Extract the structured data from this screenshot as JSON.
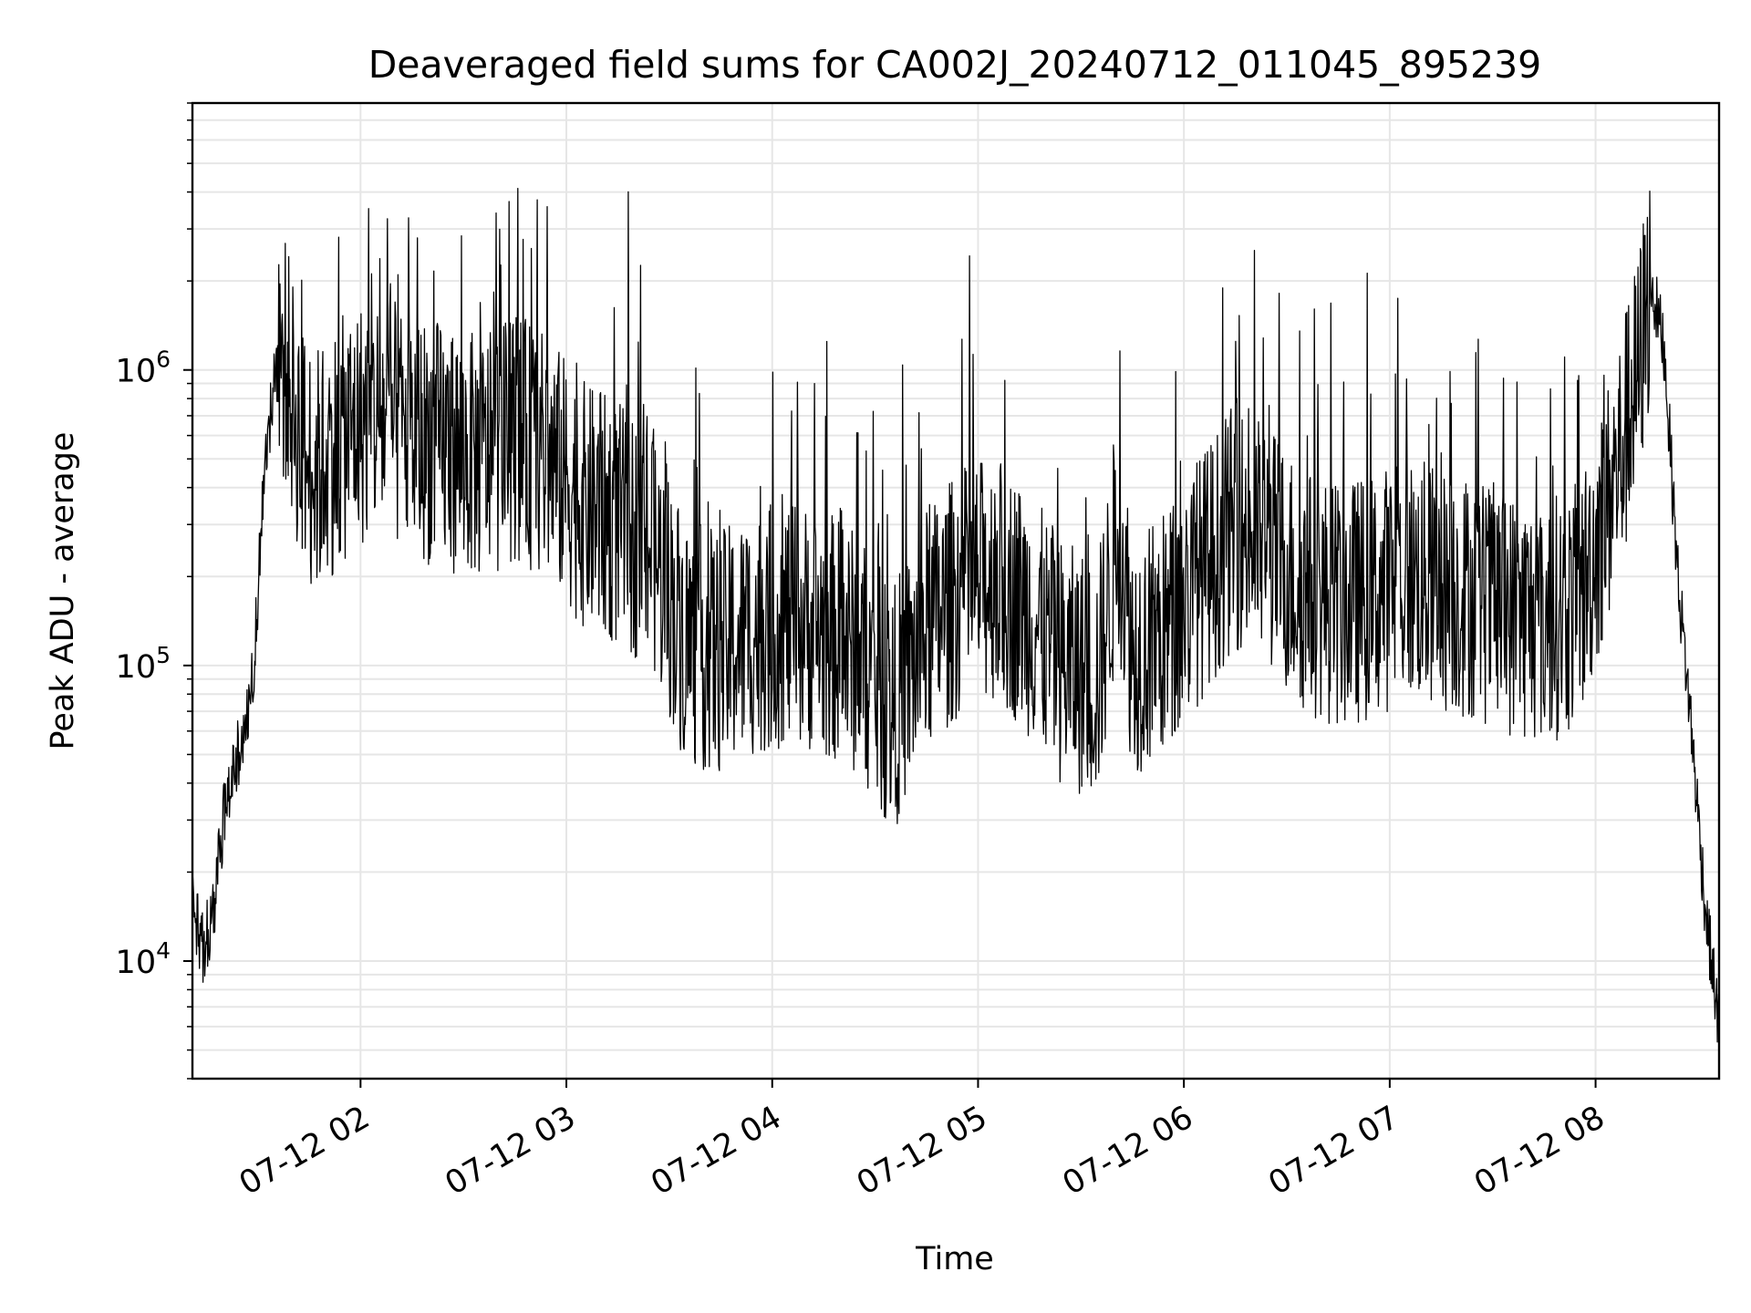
{
  "chart_data": {
    "type": "line",
    "title": "Deaveraged field sums for CA002J_20240712_011045_895239",
    "xlabel": "Time",
    "ylabel": "Peak ADU - average",
    "y_scale": "log",
    "ylim": [
      4000,
      8000000
    ],
    "xlim": [
      "07-12 01:11",
      "07-12 08:36"
    ],
    "grid": true,
    "line_color": "#000000",
    "x_ticks": [
      "07-12 02",
      "07-12 03",
      "07-12 04",
      "07-12 05",
      "07-12 06",
      "07-12 07",
      "07-12 08"
    ],
    "y_ticks": [
      {
        "base": "10",
        "exp": "4",
        "value": 10000
      },
      {
        "base": "10",
        "exp": "5",
        "value": 100000
      },
      {
        "base": "10",
        "exp": "6",
        "value": 1000000
      }
    ],
    "series": [
      {
        "x": [
          "07-12 01:11",
          "07-12 01:14",
          "07-12 01:17",
          "07-12 01:20",
          "07-12 01:23",
          "07-12 01:26",
          "07-12 01:29",
          "07-12 01:32",
          "07-12 01:35",
          "07-12 01:38",
          "07-12 01:41",
          "07-12 01:44",
          "07-12 01:47",
          "07-12 01:50",
          "07-12 01:53",
          "07-12 01:56",
          "07-12 01:59",
          "07-12 02:05",
          "07-12 02:15",
          "07-12 02:25",
          "07-12 02:35",
          "07-12 02:45",
          "07-12 02:55",
          "07-12 03:05",
          "07-12 03:15",
          "07-12 03:25",
          "07-12 03:35",
          "07-12 03:45",
          "07-12 03:55",
          "07-12 04:05",
          "07-12 04:15",
          "07-12 04:25",
          "07-12 04:35",
          "07-12 04:45",
          "07-12 04:55",
          "07-12 05:05",
          "07-12 05:15",
          "07-12 05:25",
          "07-12 05:35",
          "07-12 05:41",
          "07-12 05:45",
          "07-12 05:55",
          "07-12 06:05",
          "07-12 06:15",
          "07-12 06:25",
          "07-12 06:35",
          "07-12 06:45",
          "07-12 06:55",
          "07-12 07:05",
          "07-12 07:15",
          "07-12 07:25",
          "07-12 07:35",
          "07-12 07:45",
          "07-12 07:55",
          "07-12 08:05",
          "07-12 08:12",
          "07-12 08:16",
          "07-12 08:20",
          "07-12 08:24",
          "07-12 08:28",
          "07-12 08:32",
          "07-12 08:36"
        ],
        "y": [
          16000,
          11000,
          14000,
          30000,
          45000,
          60000,
          100000,
          500000,
          900000,
          1100000,
          700000,
          500000,
          450000,
          500000,
          550000,
          600000,
          650000,
          700000,
          600000,
          550000,
          500000,
          600000,
          500000,
          350000,
          300000,
          250000,
          120000,
          110000,
          130000,
          140000,
          130000,
          110000,
          70000,
          130000,
          180000,
          200000,
          150000,
          100000,
          90000,
          300000,
          110000,
          130000,
          200000,
          300000,
          250000,
          180000,
          160000,
          170000,
          200000,
          180000,
          170000,
          150000,
          140000,
          160000,
          400000,
          900000,
          2000000,
          1200000,
          200000,
          60000,
          15000,
          6000
        ]
      }
    ]
  }
}
